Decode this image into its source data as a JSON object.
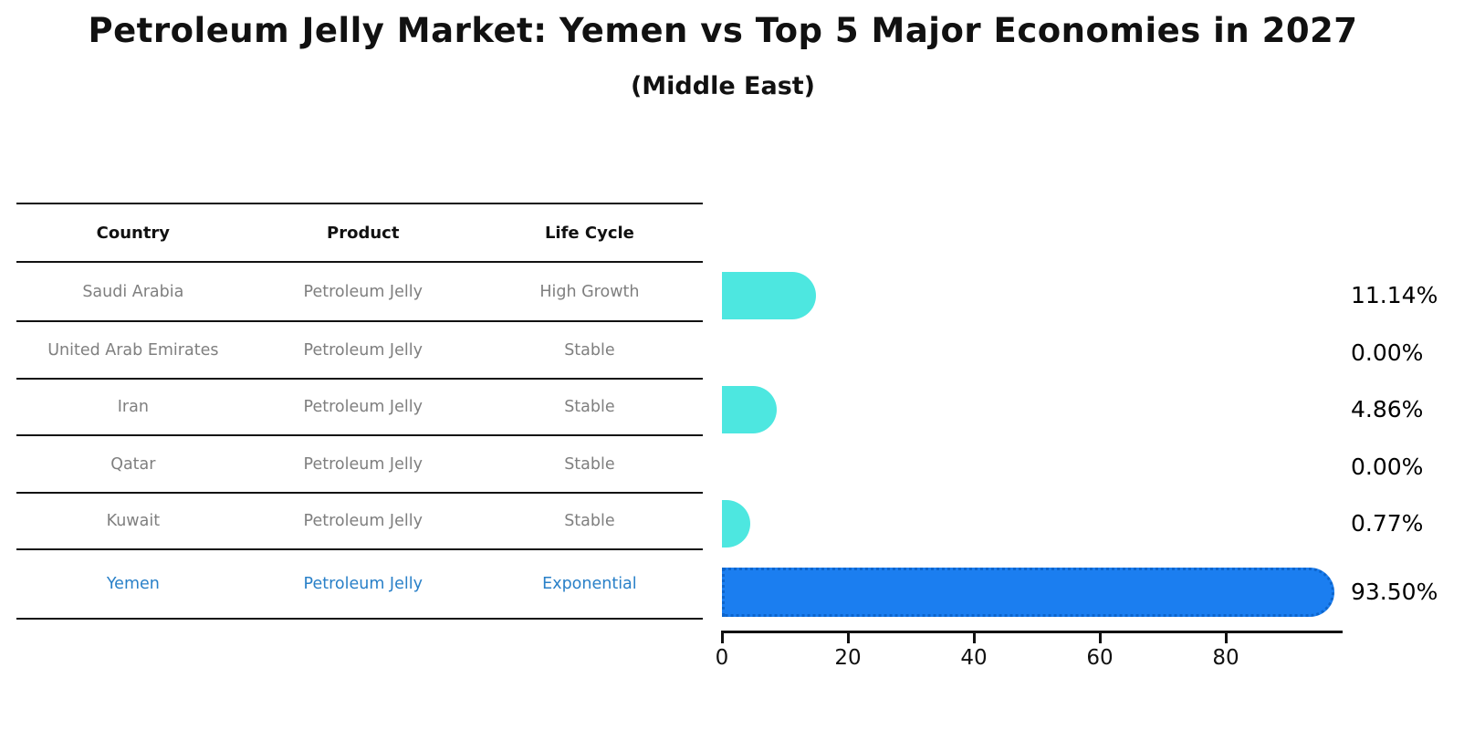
{
  "title": "Petroleum Jelly Market: Yemen vs Top 5 Major Economies in 2027",
  "subtitle": "(Middle East)",
  "table": {
    "headers": [
      "Country",
      "Product",
      "Life Cycle"
    ],
    "rows": [
      {
        "country": "Saudi Arabia",
        "product": "Petroleum Jelly",
        "life_cycle": "High Growth",
        "highlight": false
      },
      {
        "country": "United Arab Emirates",
        "product": "Petroleum Jelly",
        "life_cycle": "Stable",
        "highlight": false
      },
      {
        "country": "Iran",
        "product": "Petroleum Jelly",
        "life_cycle": "Stable",
        "highlight": false
      },
      {
        "country": "Qatar",
        "product": "Petroleum Jelly",
        "life_cycle": "Stable",
        "highlight": false
      },
      {
        "country": "Kuwait",
        "product": "Petroleum Jelly",
        "life_cycle": "Stable",
        "highlight": false
      },
      {
        "country": "Yemen",
        "product": "Petroleum Jelly",
        "life_cycle": "Exponential",
        "highlight": true
      }
    ]
  },
  "chart_data": {
    "type": "bar",
    "orientation": "horizontal",
    "title": "Petroleum Jelly Market: Yemen vs Top 5 Major Economies in 2027 (Middle East)",
    "categories": [
      "Saudi Arabia",
      "United Arab Emirates",
      "Iran",
      "Qatar",
      "Kuwait",
      "Yemen"
    ],
    "values": [
      11.14,
      0.0,
      4.86,
      0.0,
      0.77,
      93.5
    ],
    "value_labels": [
      "11.14%",
      "0.00%",
      "4.86%",
      "0.00%",
      "0.77%",
      "93.50%"
    ],
    "x_ticks": [
      "0",
      "20",
      "40",
      "60",
      "80"
    ],
    "x_tick_values": [
      0,
      20,
      40,
      60,
      80
    ],
    "xlim": [
      0,
      98.3
    ],
    "grid": false,
    "legend": false,
    "highlight_index": 5,
    "bar_color_default": "#4de7e0",
    "bar_color_highlight": "#1b7ef0",
    "bar_edge_highlight": "#0d65cc"
  },
  "colors": {
    "background": "#ffffff",
    "text_gray": "#7f7f7f",
    "text_blue": "#2980c8",
    "line": "#111111"
  }
}
